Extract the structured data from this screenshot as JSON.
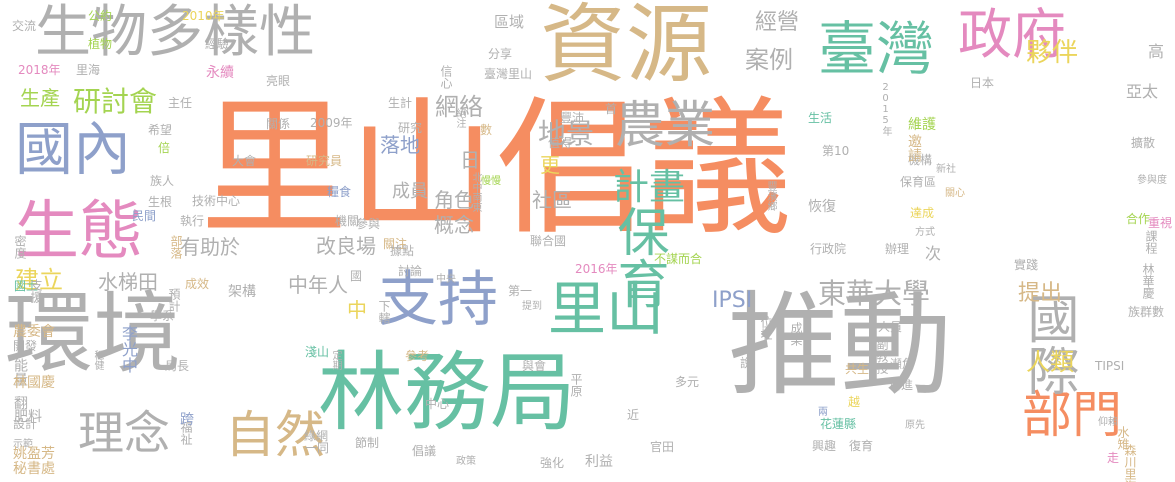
{
  "colors": {
    "orange": "#f58d61",
    "gray": "#b0b0b0",
    "green": "#66c0a3",
    "tan": "#d6b887",
    "blue": "#8ea0ca",
    "pink": "#e48abf",
    "lime": "#a4d451",
    "yellow": "#ebd55c"
  },
  "words": [
    {
      "text": "里山倡議",
      "color": "orange"
    },
    {
      "text": "推動",
      "color": "gray"
    },
    {
      "text": "林務局",
      "color": "green"
    },
    {
      "text": "環境",
      "color": "gray"
    },
    {
      "text": "資源",
      "color": "tan"
    },
    {
      "text": "生物多樣性",
      "color": "gray"
    },
    {
      "text": "臺灣",
      "color": "green"
    },
    {
      "text": "政府",
      "color": "pink"
    },
    {
      "text": "國內",
      "color": "blue"
    },
    {
      "text": "生態",
      "color": "pink"
    },
    {
      "text": "支持",
      "color": "blue"
    },
    {
      "text": "農業",
      "color": "gray"
    },
    {
      "text": "保育",
      "color": "green"
    },
    {
      "text": "里山",
      "color": "green"
    },
    {
      "text": "部門",
      "color": "orange"
    },
    {
      "text": "國際",
      "color": "gray"
    },
    {
      "text": "自然",
      "color": "tan"
    },
    {
      "text": "理念",
      "color": "gray"
    },
    {
      "text": "計畫",
      "color": "green"
    },
    {
      "text": "東華大學",
      "color": "gray"
    },
    {
      "text": "網絡",
      "color": "gray"
    },
    {
      "text": "地景",
      "color": "gray"
    },
    {
      "text": "案例",
      "color": "gray"
    },
    {
      "text": "經營",
      "color": "gray"
    },
    {
      "text": "夥伴",
      "color": "yellow"
    },
    {
      "text": "人類",
      "color": "yellow"
    },
    {
      "text": "提出",
      "color": "tan"
    },
    {
      "text": "IPSI",
      "color": "blue"
    },
    {
      "text": "生產",
      "color": "lime"
    },
    {
      "text": "研討會",
      "color": "lime"
    },
    {
      "text": "建立",
      "color": "yellow"
    },
    {
      "text": "水梯田",
      "color": "gray"
    },
    {
      "text": "有助於",
      "color": "gray"
    },
    {
      "text": "改良場",
      "color": "gray"
    },
    {
      "text": "角色",
      "color": "gray"
    },
    {
      "text": "概念",
      "color": "gray"
    },
    {
      "text": "社區",
      "color": "gray"
    },
    {
      "text": "落地",
      "color": "blue"
    },
    {
      "text": "成員",
      "color": "gray"
    },
    {
      "text": "日",
      "color": "gray"
    },
    {
      "text": "更",
      "color": "yellow"
    },
    {
      "text": "中年人",
      "color": "gray"
    },
    {
      "text": "中",
      "color": "yellow"
    },
    {
      "text": "李光中",
      "color": "blue"
    },
    {
      "text": "次",
      "color": "gray"
    },
    {
      "text": "高",
      "color": "gray"
    },
    {
      "text": "亞太",
      "color": "gray"
    },
    {
      "text": "區域",
      "color": "gray"
    },
    {
      "text": "分享",
      "color": "gray"
    },
    {
      "text": "臺灣里山",
      "color": "gray"
    },
    {
      "text": "公約",
      "color": "lime"
    },
    {
      "text": "植物",
      "color": "lime"
    },
    {
      "text": "經驗",
      "color": "gray"
    },
    {
      "text": "永續",
      "color": "pink"
    },
    {
      "text": "2010年",
      "color": "yellow"
    },
    {
      "text": "2018年",
      "color": "pink"
    },
    {
      "text": "里海",
      "color": "gray"
    },
    {
      "text": "交流",
      "color": "gray"
    },
    {
      "text": "亮眼",
      "color": "gray"
    },
    {
      "text": "信心",
      "color": "gray"
    },
    {
      "text": "主任",
      "color": "gray"
    },
    {
      "text": "希望",
      "color": "gray"
    },
    {
      "text": "生計",
      "color": "gray"
    },
    {
      "text": "研究",
      "color": "gray"
    },
    {
      "text": "關係",
      "color": "gray"
    },
    {
      "text": "2009年",
      "color": "gray"
    },
    {
      "text": "大會",
      "color": "gray"
    },
    {
      "text": "研究員",
      "color": "tan"
    },
    {
      "text": "倍",
      "color": "lime"
    },
    {
      "text": "族人",
      "color": "gray"
    },
    {
      "text": "民間",
      "color": "blue"
    },
    {
      "text": "技術中心",
      "color": "gray"
    },
    {
      "text": "參與",
      "color": "gray"
    },
    {
      "text": "糧食",
      "color": "blue"
    },
    {
      "text": "機關",
      "color": "gray"
    },
    {
      "text": "關注",
      "color": "tan"
    },
    {
      "text": "生根",
      "color": "gray"
    },
    {
      "text": "密度",
      "color": "gray"
    },
    {
      "text": "執行",
      "color": "gray"
    },
    {
      "text": "部落",
      "color": "tan"
    },
    {
      "text": "國土",
      "color": "green"
    },
    {
      "text": "支援",
      "color": "gray"
    },
    {
      "text": "成效",
      "color": "tan"
    },
    {
      "text": "架構",
      "color": "gray"
    },
    {
      "text": "預計",
      "color": "gray"
    },
    {
      "text": "學系",
      "color": "gray"
    },
    {
      "text": "農委會",
      "color": "tan"
    },
    {
      "text": "開發",
      "color": "gray"
    },
    {
      "text": "能量",
      "color": "gray"
    },
    {
      "text": "林國慶",
      "color": "tan"
    },
    {
      "text": "穩健",
      "color": "gray"
    },
    {
      "text": "局長",
      "color": "gray"
    },
    {
      "text": "淺山",
      "color": "green"
    },
    {
      "text": "定期",
      "color": "gray"
    },
    {
      "text": "翻",
      "color": "gray"
    },
    {
      "text": "肥料",
      "color": "gray"
    },
    {
      "text": "設計",
      "color": "gray"
    },
    {
      "text": "示範",
      "color": "gray"
    },
    {
      "text": "姚盈芳",
      "color": "tan"
    },
    {
      "text": "秘書處",
      "color": "tan"
    },
    {
      "text": "福祉",
      "color": "gray"
    },
    {
      "text": "跨",
      "color": "blue"
    },
    {
      "text": "綠網",
      "color": "gray"
    },
    {
      "text": "一同",
      "color": "gray"
    },
    {
      "text": "節制",
      "color": "gray"
    },
    {
      "text": "倡議",
      "color": "gray"
    },
    {
      "text": "政策",
      "color": "gray"
    },
    {
      "text": "強化",
      "color": "gray"
    },
    {
      "text": "利益",
      "color": "gray"
    },
    {
      "text": "官田",
      "color": "gray"
    },
    {
      "text": "近",
      "color": "gray"
    },
    {
      "text": "多元",
      "color": "gray"
    },
    {
      "text": "平原",
      "color": "gray"
    },
    {
      "text": "中心",
      "color": "gray"
    },
    {
      "text": "參考",
      "color": "tan"
    },
    {
      "text": "與會",
      "color": "gray"
    },
    {
      "text": "提到",
      "color": "gray"
    },
    {
      "text": "第一",
      "color": "gray"
    },
    {
      "text": "下轄",
      "color": "gray"
    },
    {
      "text": "不謀而合",
      "color": "lime"
    },
    {
      "text": "2016年",
      "color": "pink"
    },
    {
      "text": "國",
      "color": "gray"
    },
    {
      "text": "中央",
      "color": "gray"
    },
    {
      "text": "據點",
      "color": "gray"
    },
    {
      "text": "討論",
      "color": "gray"
    },
    {
      "text": "聯合國",
      "color": "gray"
    },
    {
      "text": "北中南東",
      "color": "gray"
    },
    {
      "text": "慢慢",
      "color": "lime"
    },
    {
      "text": "絕注",
      "color": "gray"
    },
    {
      "text": "數",
      "color": "tan"
    },
    {
      "text": "豐沛",
      "color": "gray"
    },
    {
      "text": "值得",
      "color": "gray"
    },
    {
      "text": "首",
      "color": "gray"
    },
    {
      "text": "生活",
      "color": "green"
    },
    {
      "text": "第10",
      "color": "gray"
    },
    {
      "text": "機構",
      "color": "gray"
    },
    {
      "text": "豐濱鄉",
      "color": "gray"
    },
    {
      "text": "恢復",
      "color": "gray"
    },
    {
      "text": "達成",
      "color": "yellow"
    },
    {
      "text": "行政院",
      "color": "gray"
    },
    {
      "text": "辦理",
      "color": "gray"
    },
    {
      "text": "維護",
      "color": "lime"
    },
    {
      "text": "邀請",
      "color": "tan"
    },
    {
      "text": "保育區",
      "color": "gray"
    },
    {
      "text": "新社",
      "color": "gray"
    },
    {
      "text": "方式",
      "color": "gray"
    },
    {
      "text": "實踐",
      "color": "gray"
    },
    {
      "text": "位址",
      "color": "gray"
    },
    {
      "text": "成果",
      "color": "gray"
    },
    {
      "text": "兩",
      "color": "blue"
    },
    {
      "text": "人員",
      "color": "gray"
    },
    {
      "text": "副教授",
      "color": "gray"
    },
    {
      "text": "瀕危",
      "color": "gray"
    },
    {
      "text": "增進",
      "color": "gray"
    },
    {
      "text": "共生",
      "color": "tan"
    },
    {
      "text": "說",
      "color": "gray"
    },
    {
      "text": "越",
      "color": "yellow"
    },
    {
      "text": "花蓮縣",
      "color": "green"
    },
    {
      "text": "興趣",
      "color": "gray"
    },
    {
      "text": "原先",
      "color": "gray"
    },
    {
      "text": "復育",
      "color": "gray"
    },
    {
      "text": "2015年",
      "color": "gray"
    },
    {
      "text": "日本",
      "color": "gray"
    },
    {
      "text": "擴散",
      "color": "gray"
    },
    {
      "text": "參與度",
      "color": "gray"
    },
    {
      "text": "關心",
      "color": "tan"
    },
    {
      "text": "合作",
      "color": "lime"
    },
    {
      "text": "重視",
      "color": "pink"
    },
    {
      "text": "課程",
      "color": "gray"
    },
    {
      "text": "林華慶",
      "color": "gray"
    },
    {
      "text": "族群數",
      "color": "gray"
    },
    {
      "text": "TIPSI",
      "color": "gray"
    },
    {
      "text": "仰賴",
      "color": "gray"
    },
    {
      "text": "水雉",
      "color": "tan"
    },
    {
      "text": "森川里海",
      "color": "tan"
    },
    {
      "text": "走",
      "color": "pink"
    }
  ]
}
